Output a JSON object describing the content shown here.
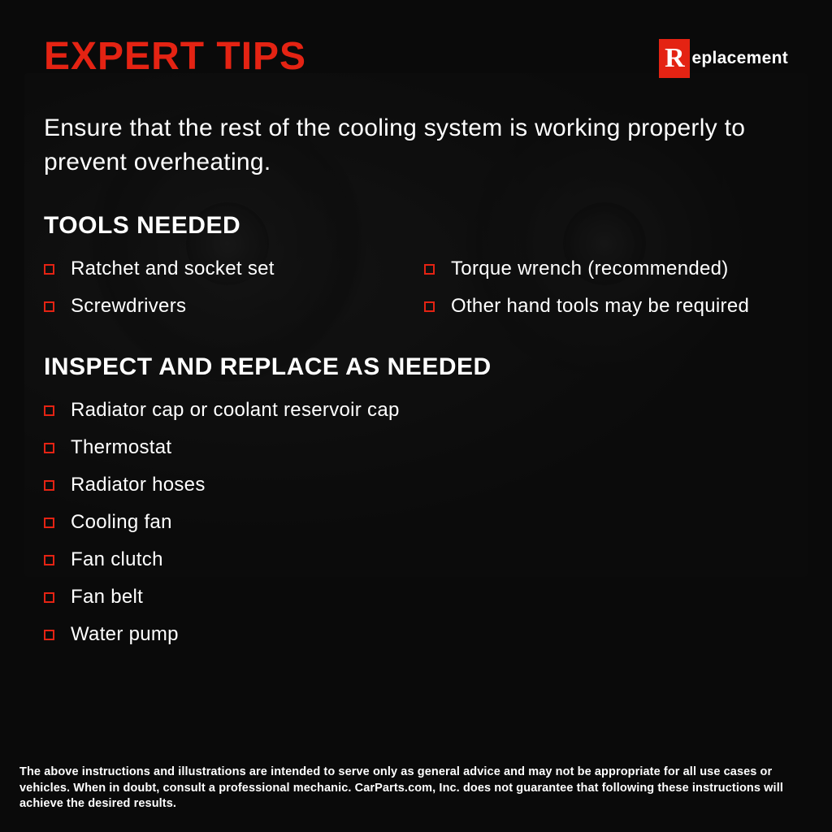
{
  "colors": {
    "background": "#0a0a0a",
    "accent": "#e42313",
    "text": "#ffffff",
    "logo_box_bg": "#e42313",
    "logo_box_text": "#ffffff"
  },
  "header": {
    "title": "EXPERT TIPS",
    "logo_letter": "R",
    "logo_rest": "eplacement"
  },
  "intro": "Ensure that the rest of the cooling system is working properly to prevent overheating.",
  "tools": {
    "heading": "TOOLS NEEDED",
    "items": [
      "Ratchet and socket set",
      "Torque wrench (recommended)",
      "Screwdrivers",
      "Other hand tools may be required"
    ]
  },
  "inspect": {
    "heading": "INSPECT AND REPLACE AS NEEDED",
    "items": [
      "Radiator cap or coolant reservoir cap",
      "Thermostat",
      "Radiator hoses",
      "Cooling fan",
      "Fan clutch",
      "Fan belt",
      "Water pump"
    ]
  },
  "disclaimer": "The above instructions and illustrations are intended to serve only as general advice and may not be appropriate for all use cases or vehicles. When in doubt, consult a professional mechanic. CarParts.com, Inc. does not guarantee that following these instructions will achieve the desired results.",
  "typography": {
    "title_fontsize": 48,
    "intro_fontsize": 30,
    "section_fontsize": 30,
    "item_fontsize": 24,
    "disclaimer_fontsize": 14.5
  },
  "bullet": {
    "size": 13,
    "border_width": 2,
    "color": "#e42313"
  }
}
